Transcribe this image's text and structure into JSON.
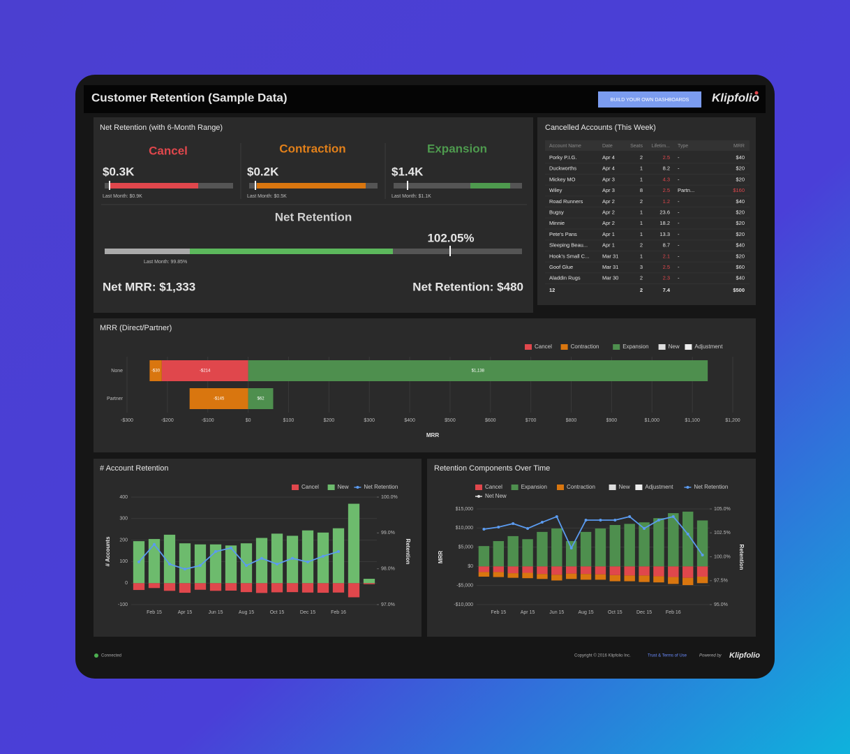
{
  "header": {
    "title": "Customer Retention (Sample Data)",
    "button": "BUILD YOUR OWN DASHBOARDS",
    "logo": "Klipfolio"
  },
  "net_retention": {
    "title": "Net Retention (with 6-Month Range)",
    "metrics": [
      {
        "label": "Cancel",
        "value": "$0.3K",
        "last_month": "Last Month: $0.9K"
      },
      {
        "label": "Contraction",
        "value": "$0.2K",
        "last_month": "Last Month: $0.5K"
      },
      {
        "label": "Expansion",
        "value": "$1.4K",
        "last_month": "Last Month: $1.1K"
      }
    ],
    "gauge_title": "Net Retention",
    "gauge_value": "102.05%",
    "gauge_last_month": "Last Month: 99.85%",
    "net_mrr": "Net MRR: $1,333",
    "net_retention_amount": "Net Retention: $480"
  },
  "cancelled_accounts": {
    "title": "Cancelled Accounts (This Week)",
    "alert_color": "#e0474c",
    "columns": [
      "Account Name",
      "Date",
      "Seats",
      "Lifetim...",
      "Type",
      "MRR"
    ],
    "rows": [
      {
        "cells": [
          "Porky P.I.G.",
          "Apr 4",
          "2",
          "2.5",
          "-",
          "$40"
        ],
        "alert_cells": [
          3
        ]
      },
      {
        "cells": [
          "Duckworths",
          "Apr 4",
          "1",
          "8.2",
          "-",
          "$20"
        ],
        "alert_cells": []
      },
      {
        "cells": [
          "Mickey MO",
          "Apr 3",
          "1",
          "4.3",
          "-",
          "$20"
        ],
        "alert_cells": [
          3
        ]
      },
      {
        "cells": [
          "Wiley",
          "Apr 3",
          "8",
          "2.5",
          "Partn...",
          "$160"
        ],
        "alert_cells": [
          3,
          5
        ]
      },
      {
        "cells": [
          "Road Runners",
          "Apr 2",
          "2",
          "1.2",
          "-",
          "$40"
        ],
        "alert_cells": [
          3
        ]
      },
      {
        "cells": [
          "Bugsy",
          "Apr 2",
          "1",
          "23.6",
          "-",
          "$20"
        ],
        "alert_cells": []
      },
      {
        "cells": [
          "Minnie",
          "Apr 2",
          "1",
          "18.2",
          "-",
          "$20"
        ],
        "alert_cells": []
      },
      {
        "cells": [
          "Pete's Pans",
          "Apr 1",
          "1",
          "13.3",
          "-",
          "$20"
        ],
        "alert_cells": []
      },
      {
        "cells": [
          "Sleeping Beau...",
          "Apr 1",
          "2",
          "8.7",
          "-",
          "$40"
        ],
        "alert_cells": []
      },
      {
        "cells": [
          "Hook's Small C...",
          "Mar 31",
          "1",
          "2.1",
          "-",
          "$20"
        ],
        "alert_cells": [
          3
        ]
      },
      {
        "cells": [
          "Goof Glue",
          "Mar 31",
          "3",
          "2.5",
          "-",
          "$60"
        ],
        "alert_cells": [
          3
        ]
      },
      {
        "cells": [
          "Aladdin Rugs",
          "Mar 30",
          "2",
          "2.3",
          "-",
          "$40"
        ],
        "alert_cells": [
          3
        ]
      }
    ],
    "total": {
      "count": "12",
      "seats": "2",
      "lifetime": "7.4",
      "mrr": "$500"
    }
  },
  "chart_data": [
    {
      "type": "hbar",
      "title": "MRR (Direct/Partner)",
      "xlabel": "MRR",
      "categories": [
        "None",
        "Partner"
      ],
      "series": [
        {
          "name": "Cancel",
          "color": "#e0474c",
          "values": [
            -214,
            0
          ],
          "value_labels": [
            "-$214",
            "$0"
          ]
        },
        {
          "name": "Contraction",
          "color": "#d9760f",
          "values": [
            -30,
            -145
          ],
          "value_labels": [
            "-$30",
            "-$145"
          ]
        },
        {
          "name": "Expansion",
          "color": "#4e8f4e",
          "values": [
            1138,
            62
          ],
          "value_labels": [
            "$1,138",
            "$62"
          ]
        },
        {
          "name": "New",
          "color": "#dddddd",
          "values": [
            null,
            null
          ]
        },
        {
          "name": "Adjustment",
          "color": "#eeeeee",
          "values": [
            null,
            null
          ]
        }
      ],
      "xlim": [
        -300,
        1200
      ],
      "xticks": [
        {
          "value": -300,
          "label": "-$300"
        },
        {
          "value": -200,
          "label": "-$200"
        },
        {
          "value": -100,
          "label": "-$100"
        },
        {
          "value": 0,
          "label": "$0"
        },
        {
          "value": 100,
          "label": "$100"
        },
        {
          "value": 200,
          "label": "$200"
        },
        {
          "value": 300,
          "label": "$300"
        },
        {
          "value": 400,
          "label": "$400"
        },
        {
          "value": 500,
          "label": "$500"
        },
        {
          "value": 600,
          "label": "$600"
        },
        {
          "value": 700,
          "label": "$700"
        },
        {
          "value": 800,
          "label": "$800"
        },
        {
          "value": 900,
          "label": "$900"
        },
        {
          "value": 1000,
          "label": "$1,000"
        },
        {
          "value": 1100,
          "label": "$1,100"
        },
        {
          "value": 1200,
          "label": "$1,200"
        }
      ],
      "grid": true
    },
    {
      "type": "combo",
      "title": "# Account Retention",
      "ylabel": "# Accounts",
      "y2label": "Retention",
      "categories": [
        null,
        "Feb 15",
        null,
        "Apr 15",
        null,
        "Jun 15",
        null,
        "Aug 15",
        null,
        "Oct 15",
        null,
        "Dec 15",
        null,
        "Feb 16",
        null,
        null
      ],
      "series": [
        {
          "name": "Cancel",
          "kind": "bar",
          "color": "#e0474c",
          "values": [
            -32,
            -23,
            -36,
            -45,
            -31,
            -36,
            -35,
            -42,
            -46,
            -43,
            -42,
            -44,
            -45,
            -44,
            -66,
            -5
          ]
        },
        {
          "name": "New",
          "kind": "bar",
          "color": "#6dbb6d",
          "values": [
            195,
            205,
            225,
            185,
            180,
            180,
            175,
            185,
            210,
            230,
            220,
            245,
            235,
            255,
            369,
            20
          ]
        },
        {
          "name": "Net Retention",
          "kind": "line",
          "axis": "y2",
          "color": "#5b9bf0",
          "values": [
            98.19,
            98.68,
            98.13,
            97.99,
            98.09,
            98.48,
            98.58,
            98.09,
            98.29,
            98.13,
            98.29,
            98.19,
            98.35,
            98.48,
            null,
            null
          ]
        }
      ],
      "ylim": [
        -100,
        400
      ],
      "yticks": [
        -100,
        0,
        100,
        200,
        300,
        400
      ],
      "y2lim": [
        97,
        100
      ],
      "y2ticks": [
        {
          "value": 97,
          "label": "97.0%"
        },
        {
          "value": 98,
          "label": "98.0%"
        },
        {
          "value": 99,
          "label": "99.0%"
        },
        {
          "value": 100,
          "label": "100.0%"
        }
      ],
      "grid": true
    },
    {
      "type": "combo",
      "title": "Retention Components Over Time",
      "ylabel": "MRR",
      "y2label": "Retention",
      "categories": [
        null,
        "Feb 15",
        null,
        "Apr 15",
        null,
        "Jun 15",
        null,
        "Aug 15",
        null,
        "Oct 15",
        null,
        "Dec 15",
        null,
        "Feb 16",
        null,
        null
      ],
      "series": [
        {
          "name": "Cancel",
          "kind": "bar",
          "color": "#e0474c",
          "values": [
            -1500,
            -1500,
            -1800,
            -1700,
            -2000,
            -2200,
            -1900,
            -2000,
            -2100,
            -2300,
            -2400,
            -2400,
            -2600,
            -2800,
            -3000,
            -2700
          ]
        },
        {
          "name": "Expansion",
          "kind": "bar",
          "color": "#4e8f4e",
          "values": [
            5300,
            6600,
            7900,
            7100,
            9000,
            9900,
            6600,
            9000,
            9900,
            10800,
            11100,
            11500,
            12600,
            13900,
            14300,
            12000
          ]
        },
        {
          "name": "Contraction",
          "kind": "bar",
          "color": "#d9760f",
          "values": [
            -1200,
            -1300,
            -1200,
            -1400,
            -1300,
            -1500,
            -1400,
            -1500,
            -1400,
            -1600,
            -1500,
            -1700,
            -1600,
            -1800,
            -1900,
            -1700
          ]
        },
        {
          "name": "New",
          "kind": "bar",
          "color": "#dddddd",
          "values": [
            null,
            null,
            null,
            null,
            null,
            null,
            null,
            null,
            null,
            null,
            null,
            null,
            null,
            null,
            null,
            null
          ]
        },
        {
          "name": "Adjustment",
          "kind": "bar",
          "color": "#eeeeee",
          "values": [
            null,
            null,
            null,
            null,
            null,
            null,
            null,
            null,
            null,
            null,
            null,
            null,
            null,
            null,
            null,
            null
          ]
        },
        {
          "name": "Net Retention",
          "kind": "line",
          "axis": "y2",
          "color": "#5b9bf0",
          "values": [
            102.88,
            103.1,
            103.47,
            102.96,
            103.61,
            104.2,
            100.91,
            103.83,
            103.83,
            103.83,
            104.2,
            102.96,
            103.83,
            104.2,
            102.37,
            100.18
          ]
        },
        {
          "name": "Net New",
          "kind": "line",
          "color": "#dddddd",
          "values": [
            null,
            null,
            null,
            null,
            null,
            null,
            null,
            null,
            null,
            null,
            null,
            null,
            null,
            null,
            null,
            null
          ]
        }
      ],
      "ylim": [
        -10000,
        15000
      ],
      "yticks": [
        {
          "value": -10000,
          "label": "-$10,000"
        },
        {
          "value": -5000,
          "label": "-$5,000"
        },
        {
          "value": 0,
          "label": "$0"
        },
        {
          "value": 5000,
          "label": "$5,000"
        },
        {
          "value": 10000,
          "label": "$10,000"
        },
        {
          "value": 15000,
          "label": "$15,000"
        }
      ],
      "y2lim": [
        95,
        105
      ],
      "y2ticks": [
        {
          "value": 95,
          "label": "95.0%"
        },
        {
          "value": 97.5,
          "label": "97.5%"
        },
        {
          "value": 100,
          "label": "100.0%"
        },
        {
          "value": 102.5,
          "label": "102.5%"
        },
        {
          "value": 105,
          "label": "105.0%"
        }
      ],
      "grid": true
    }
  ],
  "footer": {
    "status": "Connected",
    "copyright": "Copyright © 2016 Klipfolio Inc.",
    "terms": "Trust & Terms of Use",
    "powered_by": "Powered by",
    "logo": "Klipfolio"
  }
}
